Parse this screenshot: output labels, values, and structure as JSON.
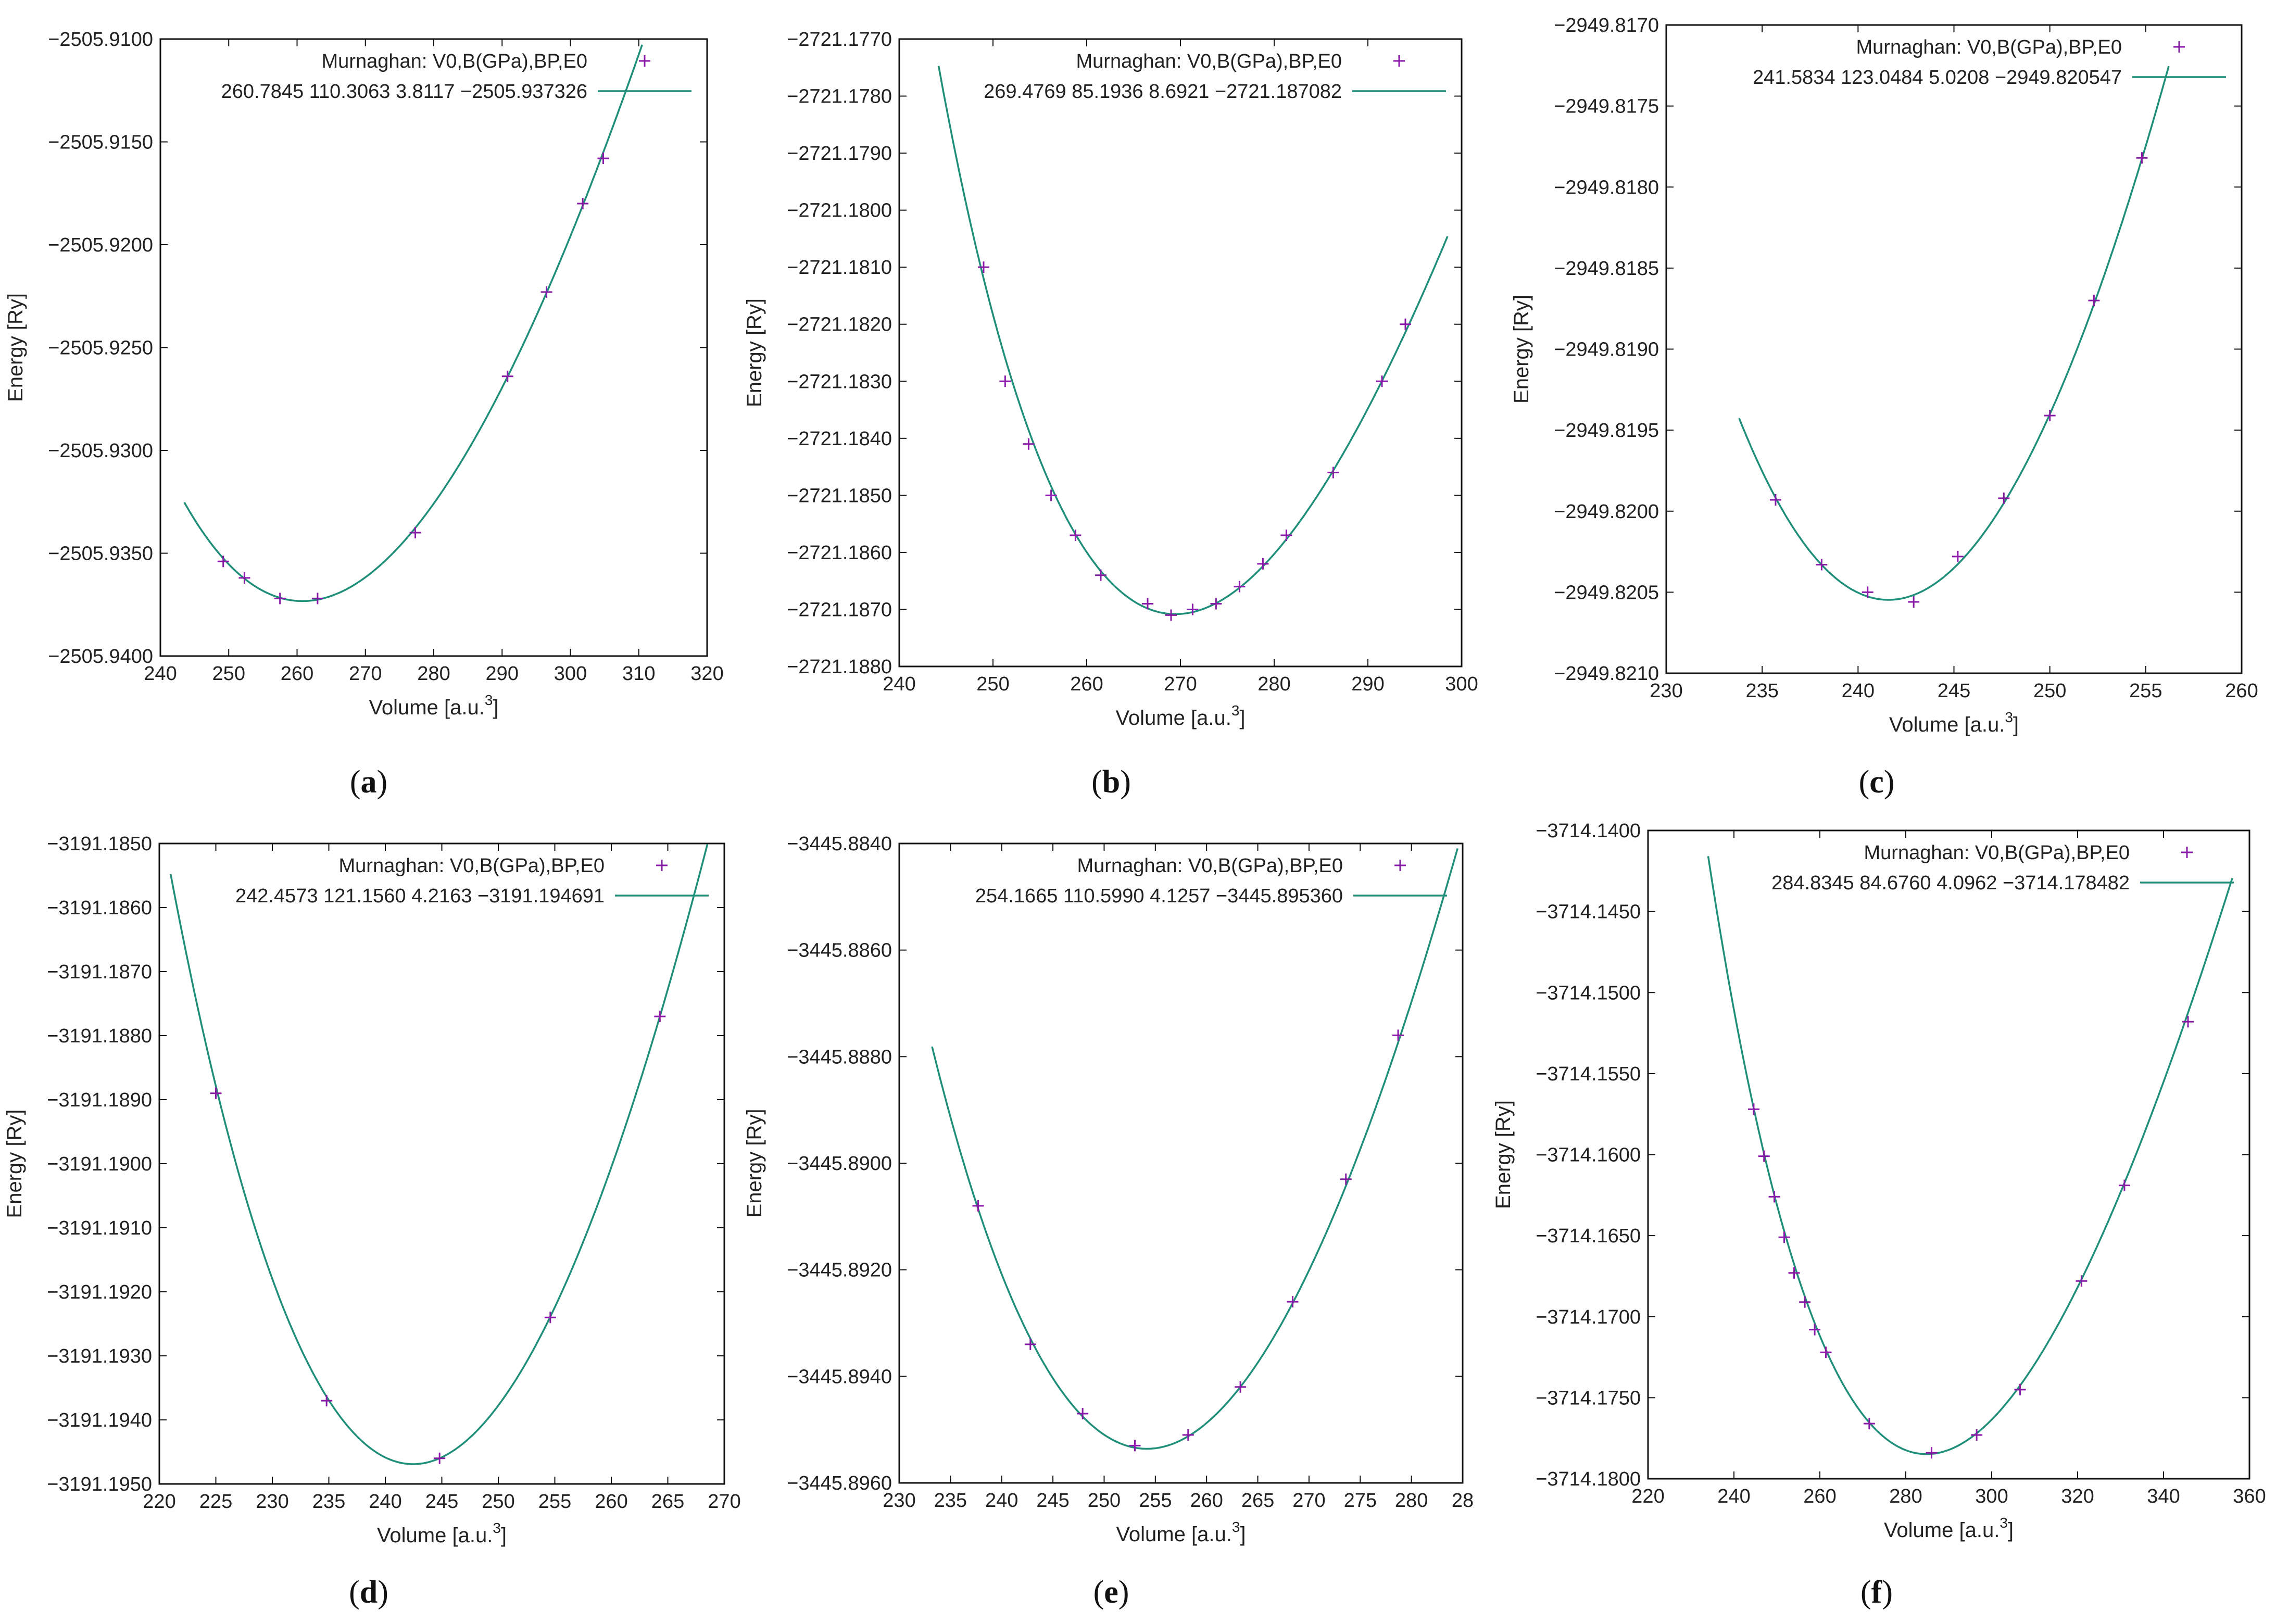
{
  "colors": {
    "curve": "#1f8f7a",
    "points": "#8a1aa8",
    "axis": "#111111"
  },
  "chart_data": [
    {
      "panel": "(a)",
      "type": "scatter",
      "xlabel": "Volume [a.u.",
      "xlabel_sup": "3",
      "xlabel_end": "]",
      "ylabel": "Energy [Ry]",
      "xlim": [
        240,
        320
      ],
      "ylim": [
        -2505.94,
        -2505.91
      ],
      "xticks": [
        "240",
        "250",
        "260",
        "270",
        "280",
        "290",
        "300",
        "310",
        "320"
      ],
      "yticks": [
        "−2505.9100",
        "−2505.9150",
        "−2505.9200",
        "−2505.9250",
        "−2505.9300",
        "−2505.9350",
        "−2505.9400"
      ],
      "legend": {
        "points_label": "Murnaghan: V0,B(GPa),BP,E0",
        "fit_label": "260.7845 110.3063 3.8117 −2505.937326"
      },
      "fit": {
        "V0": 260.7845,
        "B": 110.3063,
        "BP": 3.8117,
        "E0": -2505.937326,
        "xrange": [
          243.5,
          310.5
        ]
      },
      "points": {
        "x": [
          249.2,
          252.3,
          257.5,
          263.0,
          277.3,
          290.8,
          296.5,
          301.8,
          304.8
        ],
        "y": [
          -2505.9354,
          -2505.9362,
          -2505.9372,
          -2505.9372,
          -2505.934,
          -2505.9264,
          -2505.9223,
          -2505.918,
          -2505.9158
        ]
      }
    },
    {
      "panel": "(b)",
      "type": "scatter",
      "xlabel": "Volume [a.u.",
      "xlabel_sup": "3",
      "xlabel_end": "]",
      "ylabel": "Energy [Ry]",
      "xlim": [
        240,
        300
      ],
      "ylim": [
        -2721.188,
        -2721.177
      ],
      "xticks": [
        "240",
        "250",
        "260",
        "270",
        "280",
        "290",
        "300"
      ],
      "yticks": [
        "−2721.1770",
        "−2721.1780",
        "−2721.1790",
        "−2721.1800",
        "−2721.1810",
        "−2721.1820",
        "−2721.1830",
        "−2721.1840",
        "−2721.1850",
        "−2721.1860",
        "−2721.1870",
        "−2721.1880"
      ],
      "legend": {
        "points_label": "Murnaghan: V0,B(GPa),BP,E0",
        "fit_label": "269.4769 85.1936 8.6921 −2721.187082"
      },
      "fit": {
        "V0": 269.4769,
        "B": 85.1936,
        "BP": 8.6921,
        "E0": -2721.187082,
        "xrange": [
          244.2,
          298.5
        ]
      },
      "points": {
        "x": [
          249.0,
          251.3,
          253.8,
          256.2,
          258.8,
          261.5,
          266.5,
          269.0,
          271.3,
          273.8,
          276.3,
          278.8,
          281.3,
          286.3,
          291.5,
          294.0
        ],
        "y": [
          -2721.181,
          -2721.183,
          -2721.1841,
          -2721.185,
          -2721.1857,
          -2721.1864,
          -2721.1869,
          -2721.1871,
          -2721.187,
          -2721.1869,
          -2721.1866,
          -2721.1862,
          -2721.1857,
          -2721.1846,
          -2721.183,
          -2721.182
        ]
      }
    },
    {
      "panel": "(c)",
      "type": "scatter",
      "xlabel": "Volume [a.u.",
      "xlabel_sup": "3",
      "xlabel_end": "]",
      "ylabel": "Energy [Ry]",
      "xlim": [
        230,
        260
      ],
      "ylim": [
        -2949.821,
        -2949.817
      ],
      "xticks": [
        "230",
        "235",
        "240",
        "245",
        "250",
        "255",
        "260"
      ],
      "yticks": [
        "−2949.8170",
        "−2949.8175",
        "−2949.8180",
        "−2949.8185",
        "−2949.8190",
        "−2949.8195",
        "−2949.8200",
        "−2949.8205",
        "−2949.8210"
      ],
      "legend": {
        "points_label": "Murnaghan: V0,B(GPa),BP,E0",
        "fit_label": "241.5834 123.0484 5.0208 −2949.820547"
      },
      "fit": {
        "V0": 241.5834,
        "B": 123.0484,
        "BP": 5.0208,
        "E0": -2949.820547,
        "xrange": [
          233.8,
          256.2
        ]
      },
      "points": {
        "x": [
          235.7,
          238.1,
          240.5,
          242.9,
          245.2,
          247.6,
          250.0,
          252.3,
          254.8
        ],
        "y": [
          -2949.81993,
          -2949.82033,
          -2949.8205,
          -2949.82056,
          -2949.82028,
          -2949.81992,
          -2949.81941,
          -2949.8187,
          -2949.81782
        ]
      }
    },
    {
      "panel": "(d)",
      "type": "scatter",
      "xlabel": "Volume [a.u.",
      "xlabel_sup": "3",
      "xlabel_end": "]",
      "ylabel": "Energy [Ry]",
      "xlim": [
        220,
        270
      ],
      "ylim": [
        -3191.195,
        -3191.185
      ],
      "xticks": [
        "220",
        "225",
        "230",
        "235",
        "240",
        "245",
        "250",
        "255",
        "260",
        "265",
        "270"
      ],
      "yticks": [
        "−3191.1850",
        "−3191.1860",
        "−3191.1870",
        "−3191.1880",
        "−3191.1890",
        "−3191.1900",
        "−3191.1910",
        "−3191.1920",
        "−3191.1930",
        "−3191.1940",
        "−3191.1950"
      ],
      "legend": {
        "points_label": "Murnaghan: V0,B(GPa),BP,E0",
        "fit_label": "242.4573 121.1560 4.2163 −3191.194691"
      },
      "fit": {
        "V0": 242.4573,
        "B": 121.156,
        "BP": 4.2163,
        "E0": -3191.194691,
        "xrange": [
          221.0,
          268.5
        ]
      },
      "points": {
        "x": [
          225.0,
          234.8,
          244.8,
          254.6,
          264.3
        ],
        "y": [
          -3191.1889,
          -3191.1937,
          -3191.1946,
          -3191.1924,
          -3191.1877
        ]
      }
    },
    {
      "panel": "(e)",
      "type": "scatter",
      "xlabel": "Volume [a.u.",
      "xlabel_sup": "3",
      "xlabel_end": "]",
      "ylabel": "Energy [Ry]",
      "xlim": [
        230,
        285
      ],
      "ylim": [
        -3445.896,
        -3445.884
      ],
      "xticks": [
        "230",
        "235",
        "240",
        "245",
        "250",
        "255",
        "260",
        "265",
        "270",
        "275",
        "280",
        "28"
      ],
      "yticks": [
        "−3445.8840",
        "−3445.8860",
        "−3445.8880",
        "−3445.8900",
        "−3445.8920",
        "−3445.8940",
        "−3445.8960"
      ],
      "legend": {
        "points_label": "Murnaghan: V0,B(GPa),BP,E0",
        "fit_label": "254.1665 110.5990 4.1257 −3445.895360"
      },
      "fit": {
        "V0": 254.1665,
        "B": 110.599,
        "BP": 4.1257,
        "E0": -3445.89536,
        "xrange": [
          233.2,
          284.5
        ]
      },
      "points": {
        "x": [
          237.7,
          242.8,
          247.9,
          253.0,
          258.2,
          263.3,
          268.4,
          273.6,
          278.7
        ],
        "y": [
          -3445.8908,
          -3445.8934,
          -3445.8947,
          -3445.8953,
          -3445.8951,
          -3445.8942,
          -3445.8926,
          -3445.8903,
          -3445.8876
        ]
      }
    },
    {
      "panel": "(f)",
      "type": "scatter",
      "xlabel": "Volume [a.u.",
      "xlabel_sup": "3",
      "xlabel_end": "]",
      "ylabel": "Energy [Ry]",
      "xlim": [
        220,
        360
      ],
      "ylim": [
        -3714.18,
        -3714.14
      ],
      "xticks": [
        "220",
        "240",
        "260",
        "280",
        "300",
        "320",
        "340",
        "360"
      ],
      "yticks": [
        "−3714.1400",
        "−3714.1450",
        "−3714.1500",
        "−3714.1550",
        "−3714.1600",
        "−3714.1650",
        "−3714.1700",
        "−3714.1750",
        "−3714.1800"
      ],
      "legend": {
        "points_label": "Murnaghan: V0,B(GPa),BP,E0",
        "fit_label": "284.8345 84.6760 4.0962 −3714.178482"
      },
      "fit": {
        "V0": 284.8345,
        "B": 84.676,
        "BP": 4.0962,
        "E0": -3714.178482,
        "xrange": [
          234.0,
          356.0
        ]
      },
      "points": {
        "x": [
          244.6,
          247.0,
          249.4,
          251.7,
          254.0,
          256.5,
          258.8,
          261.4,
          271.5,
          286.0,
          296.5,
          306.6,
          320.9,
          330.9,
          345.7
        ],
        "y": [
          -3714.1572,
          -3714.1601,
          -3714.1626,
          -3714.1651,
          -3714.1673,
          -3714.1691,
          -3714.1708,
          -3714.1722,
          -3714.1766,
          -3714.1784,
          -3714.1773,
          -3714.1745,
          -3714.1678,
          -3714.1619,
          -3714.1518
        ]
      }
    }
  ],
  "panel_labels": [
    {
      "open": "(",
      "letter": "a",
      "close": ")"
    },
    {
      "open": "(",
      "letter": "b",
      "close": ")"
    },
    {
      "open": "(",
      "letter": "c",
      "close": ")"
    },
    {
      "open": "(",
      "letter": "d",
      "close": ")"
    },
    {
      "open": "(",
      "letter": "e",
      "close": ")"
    },
    {
      "open": "(",
      "letter": "f",
      "close": ")"
    }
  ]
}
